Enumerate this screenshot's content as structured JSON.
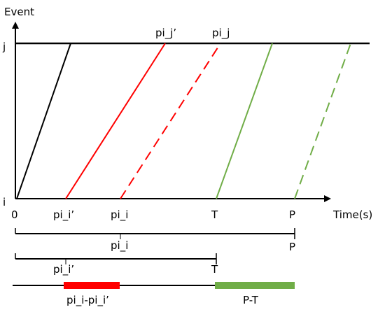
{
  "colors": {
    "axis": "#000000",
    "black": "#000000",
    "red": "#ff0000",
    "green": "#70ad47"
  },
  "axes": {
    "y_label": "Event",
    "x_label": "Time(s)",
    "y_tick_top": "j",
    "y_tick_bottom": "i",
    "x_tick_origin": "0"
  },
  "top_labels": {
    "pi_j_prime": "pi_j’",
    "pi_j": "pi_j"
  },
  "bottom_labels": {
    "pi_i_prime": "pi_i’",
    "pi_i": "pi_i",
    "T": "T",
    "P": "P"
  },
  "timeline": {
    "row1_label_mid": "pi_i",
    "row1_label_end": "P",
    "row2_label_mid": "pi_i’",
    "row2_label_end": "T",
    "segment_red_label": "pi_i-pi_i’",
    "segment_green_label": "P-T"
  },
  "lines": [
    {
      "name": "black-solid-line",
      "color": "black",
      "style": "solid"
    },
    {
      "name": "red-solid-line",
      "color": "red",
      "style": "solid"
    },
    {
      "name": "red-dashed-line",
      "color": "red",
      "style": "dashed"
    },
    {
      "name": "green-solid-line",
      "color": "green",
      "style": "solid"
    },
    {
      "name": "green-dashed-line",
      "color": "green",
      "style": "dashed"
    }
  ]
}
